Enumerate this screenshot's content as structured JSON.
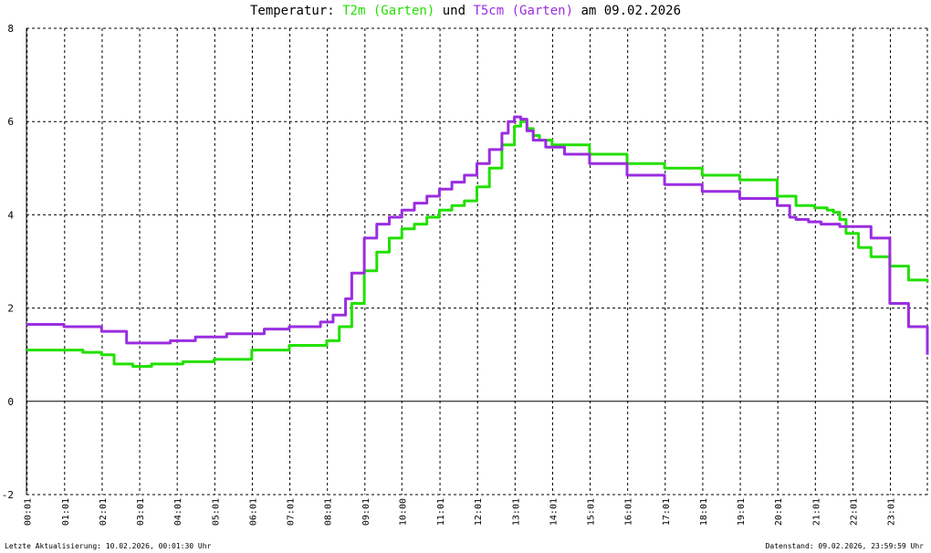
{
  "title": {
    "prefix": "Temperatur: ",
    "series1": "T2m (Garten)",
    "middle": " und ",
    "series2": "T5cm (Garten)",
    "suffix": " am 09.02.2026"
  },
  "footer": {
    "left": "Letzte Aktualisierung: 10.02.2026, 00:01:30 Uhr",
    "right": "Datenstand: 09.02.2026, 23:59:59 Uhr"
  },
  "colors": {
    "t2m": "#22e000",
    "t5cm": "#9a2de0",
    "grid": "#000000"
  },
  "chart_data": {
    "type": "line",
    "xlabel": "",
    "ylabel": "",
    "xlim": [
      0,
      1440
    ],
    "ylim": [
      -2,
      8
    ],
    "y_ticks": [
      "-2",
      "0",
      "2",
      "4",
      "6",
      "8"
    ],
    "x_ticks": [
      "00:01",
      "01:01",
      "02:01",
      "03:01",
      "04:01",
      "05:01",
      "06:01",
      "07:01",
      "08:01",
      "09:01",
      "10:00",
      "11:01",
      "12:01",
      "13:01",
      "14:01",
      "15:01",
      "16:01",
      "17:01",
      "18:01",
      "19:01",
      "20:01",
      "21:01",
      "22:01",
      "23:01"
    ],
    "grid": true,
    "series": [
      {
        "name": "T2m (Garten)",
        "color": "#22e000",
        "x": [
          0,
          60,
          90,
          120,
          140,
          170,
          200,
          250,
          300,
          360,
          420,
          460,
          480,
          500,
          520,
          540,
          560,
          580,
          600,
          620,
          640,
          660,
          680,
          700,
          720,
          740,
          760,
          780,
          790,
          800,
          810,
          820,
          840,
          900,
          960,
          1020,
          1080,
          1140,
          1200,
          1230,
          1260,
          1280,
          1290,
          1300,
          1310,
          1330,
          1350,
          1380,
          1410,
          1440
        ],
        "y": [
          1.1,
          1.1,
          1.05,
          1.0,
          0.8,
          0.75,
          0.8,
          0.85,
          0.9,
          1.1,
          1.2,
          1.2,
          1.3,
          1.6,
          2.1,
          2.8,
          3.2,
          3.5,
          3.7,
          3.8,
          3.95,
          4.1,
          4.2,
          4.3,
          4.6,
          5.0,
          5.5,
          5.9,
          6.0,
          5.85,
          5.7,
          5.6,
          5.5,
          5.3,
          5.1,
          5.0,
          4.85,
          4.75,
          4.4,
          4.2,
          4.15,
          4.1,
          4.05,
          3.9,
          3.6,
          3.3,
          3.1,
          2.9,
          2.6,
          2.55
        ]
      },
      {
        "name": "T5cm (Garten)",
        "color": "#9a2de0",
        "x": [
          0,
          30,
          60,
          120,
          160,
          190,
          230,
          270,
          320,
          380,
          420,
          470,
          490,
          510,
          520,
          540,
          560,
          580,
          600,
          620,
          640,
          660,
          680,
          700,
          720,
          740,
          760,
          770,
          780,
          790,
          800,
          810,
          830,
          860,
          900,
          960,
          1020,
          1080,
          1140,
          1200,
          1220,
          1230,
          1250,
          1270,
          1300,
          1330,
          1350,
          1380,
          1410,
          1440
        ],
        "y": [
          1.65,
          1.65,
          1.6,
          1.5,
          1.25,
          1.25,
          1.3,
          1.38,
          1.45,
          1.55,
          1.6,
          1.7,
          1.85,
          2.2,
          2.75,
          3.5,
          3.8,
          3.95,
          4.1,
          4.25,
          4.4,
          4.55,
          4.7,
          4.85,
          5.1,
          5.4,
          5.75,
          6.0,
          6.1,
          6.05,
          5.8,
          5.6,
          5.45,
          5.3,
          5.1,
          4.85,
          4.65,
          4.5,
          4.35,
          4.2,
          3.95,
          3.9,
          3.85,
          3.8,
          3.75,
          3.75,
          3.5,
          2.1,
          1.6,
          1.0
        ]
      }
    ]
  }
}
